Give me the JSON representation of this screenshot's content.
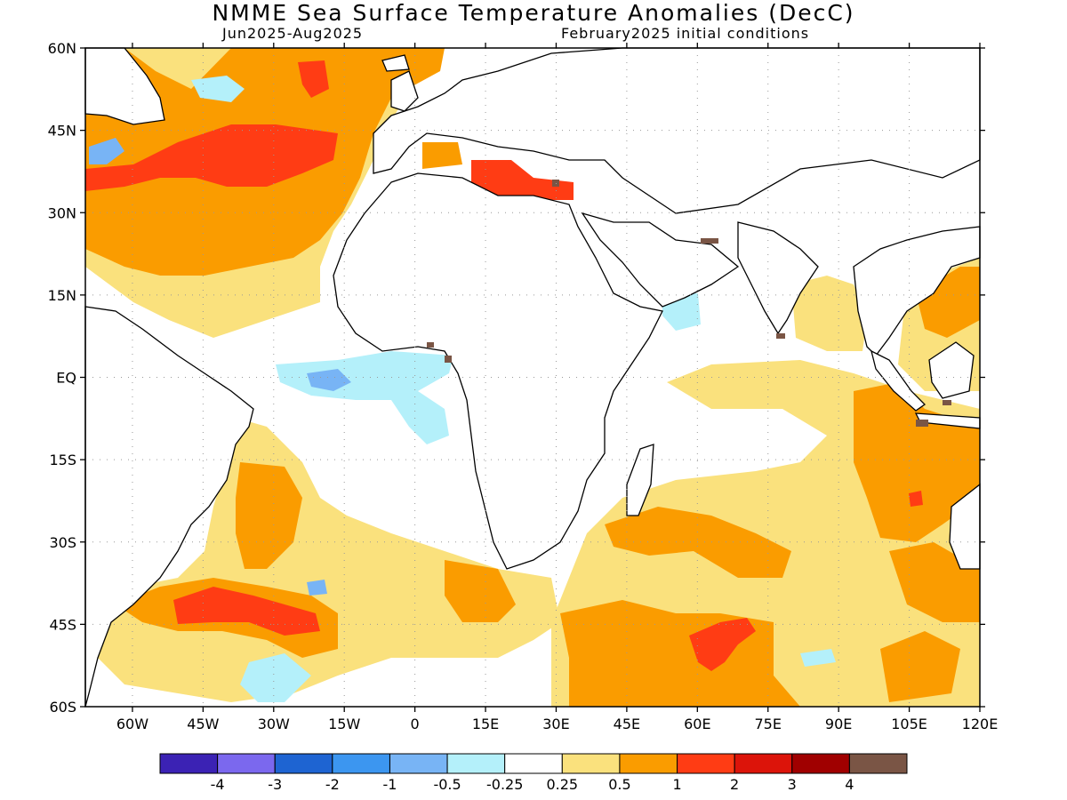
{
  "title": "NMME Sea Surface Temperature Anomalies (DecC)",
  "period": "Jun2025-Aug2025",
  "initial_conditions": "February2025 initial conditions",
  "lat_labels": [
    "60N",
    "45N",
    "30N",
    "15N",
    "EQ",
    "15S",
    "30S",
    "45S",
    "60S"
  ],
  "lon_labels": [
    "60W",
    "45W",
    "30W",
    "15W",
    "0",
    "15E",
    "30E",
    "45E",
    "60E",
    "75E",
    "90E",
    "105E",
    "120E"
  ],
  "colorbar": {
    "colors": [
      "#3b22b4",
      "#7b68ee",
      "#1e64d2",
      "#3c96f0",
      "#78b4f5",
      "#b4f0fa",
      "#ffffff",
      "#fae17d",
      "#fa9c00",
      "#ff3c14",
      "#dc140a",
      "#a00000",
      "#7a5545"
    ],
    "labels": [
      "-4",
      "-3",
      "-2",
      "-1",
      "-0.5",
      "-0.25",
      "0.25",
      "0.5",
      "1",
      "2",
      "3",
      "4"
    ]
  },
  "colors": {
    "land_outline": "#000000",
    "grid": "#999999",
    "strong_warm": "#ff3c14",
    "warm": "#fa9c00",
    "weak_warm": "#fae17d",
    "weak_cool": "#b4f0fa",
    "cool": "#78b4f5",
    "cooler": "#3c96f0",
    "extreme_warm": "#dc140a",
    "land_mask": "#7a5545"
  },
  "anomaly_regions": [
    {
      "name": "north-atlantic-band",
      "level": "warm"
    },
    {
      "name": "north-atlantic-core",
      "level": "strong_warm"
    },
    {
      "name": "mediterranean",
      "level": "strong_warm"
    },
    {
      "name": "south-atlantic-45s",
      "level": "strong_warm"
    },
    {
      "name": "indian-ocean-south",
      "level": "warm"
    },
    {
      "name": "southern-ocean-core",
      "level": "strong_warm"
    },
    {
      "name": "equatorial-atlantic",
      "level": "weak_cool"
    },
    {
      "name": "gulf-of-aden",
      "level": "weak_cool"
    }
  ]
}
